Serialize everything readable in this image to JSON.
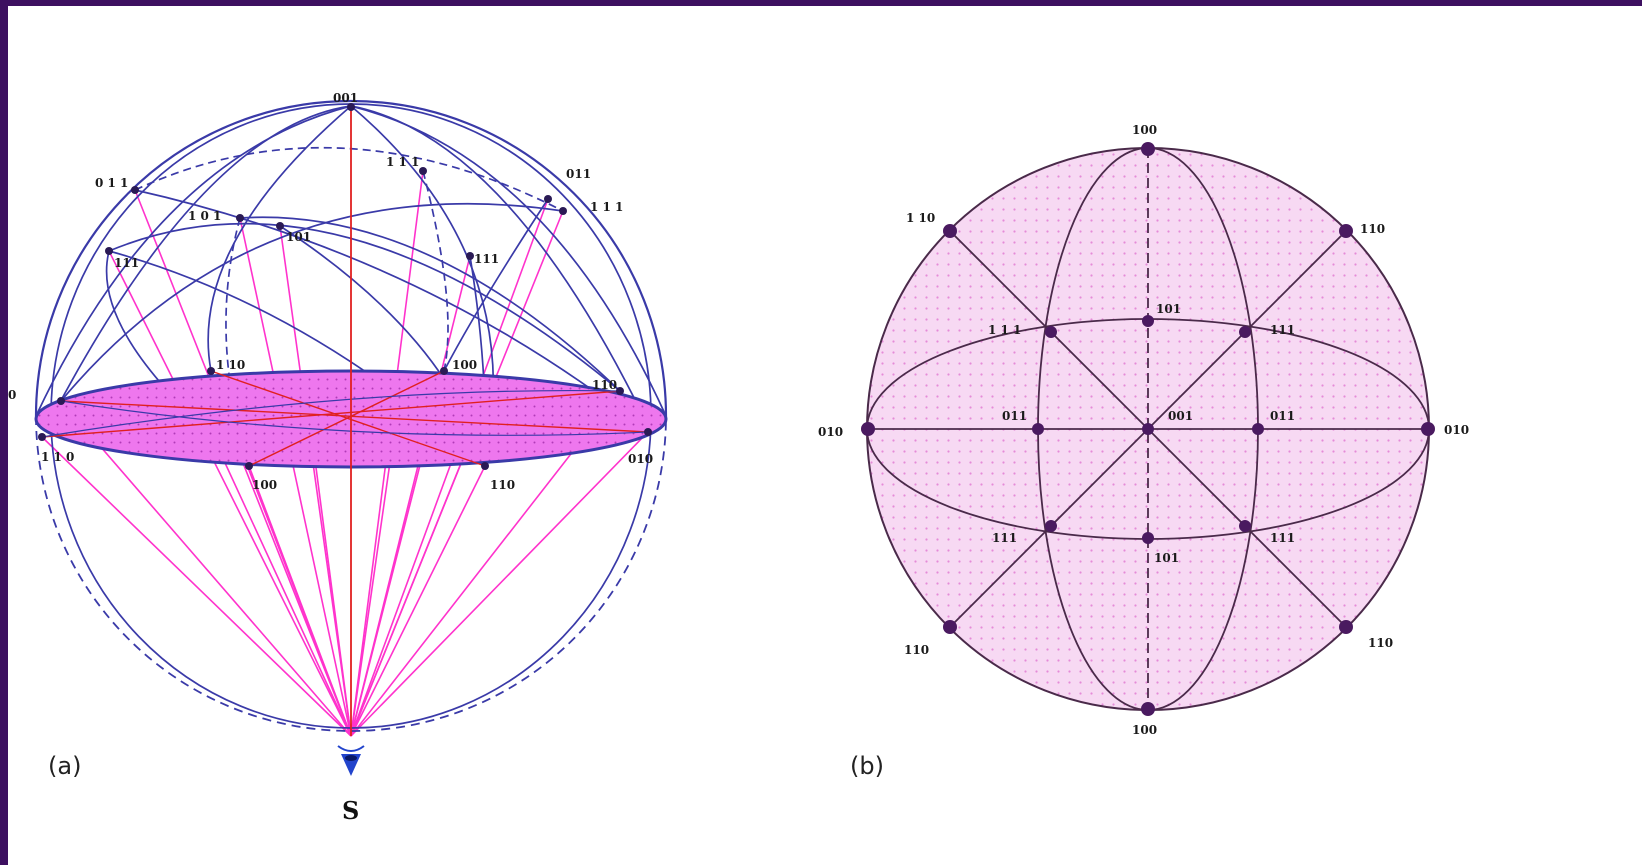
{
  "colors": {
    "border": "#3d1060",
    "sphere_line": "#3a3aa8",
    "projector_line": "#ff33cc",
    "axis_line": "#e02020",
    "plane_fill": "#ee66ee",
    "net_line": "#4a2a4a",
    "net_fill": "#f7d9f3",
    "net_dots": "#e58ad8",
    "pole_dot": "#4a1a60",
    "eye_icon": "#2244cc"
  },
  "icons": {
    "viewer": "eye-icon"
  },
  "panel_a": {
    "label": "(a)",
    "source_label": "S",
    "poles": [
      {
        "text": "001"
      },
      {
        "text": "0 1 1"
      },
      {
        "text": "1 0 1"
      },
      {
        "text": "011"
      },
      {
        "text": "1 1 1"
      },
      {
        "text": "101"
      },
      {
        "text": "1 1 1"
      },
      {
        "text": "111"
      },
      {
        "text": "111"
      },
      {
        "text": "1 10"
      },
      {
        "text": "100"
      },
      {
        "text": "110"
      },
      {
        "text": "1 1 0"
      },
      {
        "text": "010"
      },
      {
        "text": "0"
      },
      {
        "text": "100"
      },
      {
        "text": "110"
      }
    ]
  },
  "panel_b": {
    "label": "(b)",
    "poles": [
      {
        "text": "100"
      },
      {
        "text": "1 10"
      },
      {
        "text": "110"
      },
      {
        "text": "1 1 1"
      },
      {
        "text": "101"
      },
      {
        "text": "111"
      },
      {
        "text": "010"
      },
      {
        "text": "011"
      },
      {
        "text": "001"
      },
      {
        "text": "011"
      },
      {
        "text": "010"
      },
      {
        "text": "111"
      },
      {
        "text": "101"
      },
      {
        "text": "111"
      },
      {
        "text": "110"
      },
      {
        "text": "110"
      },
      {
        "text": "100"
      }
    ]
  }
}
